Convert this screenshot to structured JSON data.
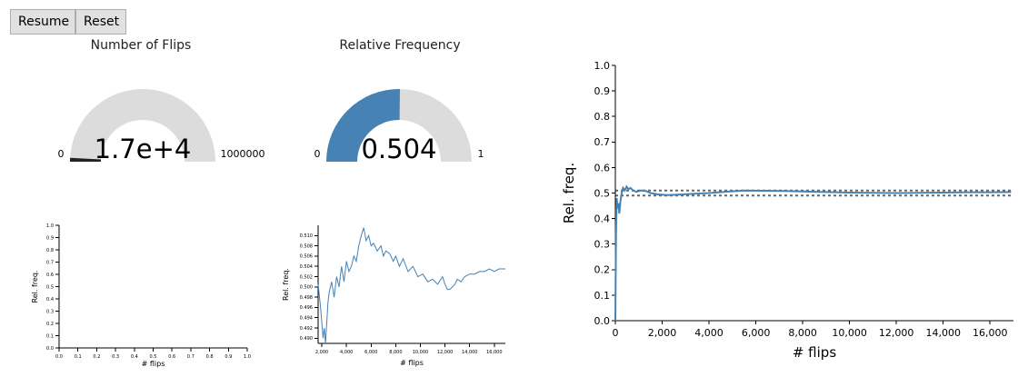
{
  "controls": {
    "resume_label": "Resume",
    "reset_label": "Reset"
  },
  "gauges": [
    {
      "title": "Number of Flips",
      "value_display": "1.7e+4",
      "value": 17000,
      "min": "0",
      "max": "1000000",
      "fraction": 0.017,
      "fill_color": "#222222"
    },
    {
      "title": "Relative Frequency",
      "value_display": "0.504",
      "value": 0.504,
      "min": "0",
      "max": "1",
      "fraction": 0.504,
      "fill_color": "#4682b4"
    }
  ],
  "colors": {
    "gauge_track": "#dcdcdc",
    "series": "#4682b4",
    "reference": "#666666"
  },
  "chart_data": [
    {
      "type": "line",
      "xlabel": "# flips",
      "ylabel": "Rel. freq.",
      "xlim": [
        0,
        1
      ],
      "ylim": [
        0,
        1
      ],
      "x_ticks": [
        "0.0",
        "0.1",
        "0.2",
        "0.3",
        "0.4",
        "0.5",
        "0.6",
        "0.7",
        "0.8",
        "0.9",
        "1.0"
      ],
      "y_ticks": [
        "0.0",
        "0.1",
        "0.2",
        "0.3",
        "0.4",
        "0.5",
        "0.6",
        "0.7",
        "0.8",
        "0.9",
        "1.0"
      ],
      "series": [
        {
          "x": [],
          "y": []
        }
      ]
    },
    {
      "type": "line",
      "xlabel": "# flips",
      "ylabel": "Rel. freq.",
      "xlim": [
        1700,
        16900
      ],
      "ylim": [
        0.489,
        0.512
      ],
      "x_ticks": [
        "2,000",
        "4,000",
        "6,000",
        "8,000",
        "10,000",
        "12,000",
        "14,000",
        "16,000"
      ],
      "y_ticks": [
        "0.490",
        "0.492",
        "0.494",
        "0.496",
        "0.498",
        "0.500",
        "0.502",
        "0.504",
        "0.506",
        "0.508",
        "0.510"
      ],
      "series": [
        {
          "x": [
            1700,
            1900,
            2000,
            2100,
            2200,
            2300,
            2400,
            2500,
            2600,
            2800,
            3000,
            3200,
            3400,
            3600,
            3800,
            4000,
            4200,
            4400,
            4600,
            4800,
            5000,
            5200,
            5400,
            5600,
            5800,
            6000,
            6200,
            6500,
            6800,
            7000,
            7200,
            7500,
            7800,
            8000,
            8300,
            8600,
            9000,
            9400,
            9800,
            10200,
            10600,
            11000,
            11400,
            11800,
            12000,
            12200,
            12400,
            12600,
            12800,
            13000,
            13300,
            13600,
            14000,
            14400,
            14800,
            15200,
            15600,
            16000,
            16400,
            16900
          ],
          "y": [
            0.5005,
            0.496,
            0.493,
            0.49,
            0.492,
            0.489,
            0.493,
            0.497,
            0.499,
            0.501,
            0.498,
            0.502,
            0.5,
            0.504,
            0.501,
            0.505,
            0.503,
            0.504,
            0.506,
            0.505,
            0.508,
            0.51,
            0.5115,
            0.509,
            0.51,
            0.508,
            0.5085,
            0.507,
            0.508,
            0.506,
            0.507,
            0.5065,
            0.505,
            0.506,
            0.504,
            0.5055,
            0.503,
            0.504,
            0.502,
            0.5025,
            0.501,
            0.5015,
            0.5005,
            0.502,
            0.5005,
            0.4995,
            0.4995,
            0.5,
            0.5005,
            0.5015,
            0.501,
            0.502,
            0.5025,
            0.5025,
            0.503,
            0.503,
            0.5035,
            0.503,
            0.5035,
            0.5035
          ]
        }
      ]
    },
    {
      "type": "line",
      "xlabel": "# flips",
      "ylabel": "Rel. freq.",
      "xlim": [
        0,
        17000
      ],
      "ylim": [
        0,
        1
      ],
      "x_ticks": [
        "0",
        "2,000",
        "4,000",
        "6,000",
        "8,000",
        "10,000",
        "12,000",
        "14,000",
        "16,000"
      ],
      "y_ticks": [
        "0.0",
        "0.1",
        "0.2",
        "0.3",
        "0.4",
        "0.5",
        "0.6",
        "0.7",
        "0.8",
        "0.9",
        "1.0"
      ],
      "reference_lines": [
        0.49,
        0.51
      ],
      "series": [
        {
          "x": [
            0,
            30,
            60,
            90,
            130,
            170,
            220,
            270,
            330,
            400,
            480,
            560,
            650,
            750,
            900,
            1100,
            1300,
            1500,
            1800,
            2200,
            2700,
            3300,
            4000,
            4700,
            5500,
            6300,
            7200,
            8000,
            9000,
            10000,
            11000,
            12000,
            13000,
            14000,
            15000,
            16000,
            16900
          ],
          "y": [
            0.0,
            0.35,
            0.48,
            0.44,
            0.46,
            0.42,
            0.47,
            0.5,
            0.52,
            0.51,
            0.525,
            0.515,
            0.52,
            0.51,
            0.505,
            0.51,
            0.508,
            0.5,
            0.495,
            0.492,
            0.494,
            0.497,
            0.5,
            0.505,
            0.51,
            0.509,
            0.508,
            0.506,
            0.504,
            0.502,
            0.501,
            0.5,
            0.501,
            0.502,
            0.503,
            0.503,
            0.504
          ]
        }
      ]
    }
  ]
}
